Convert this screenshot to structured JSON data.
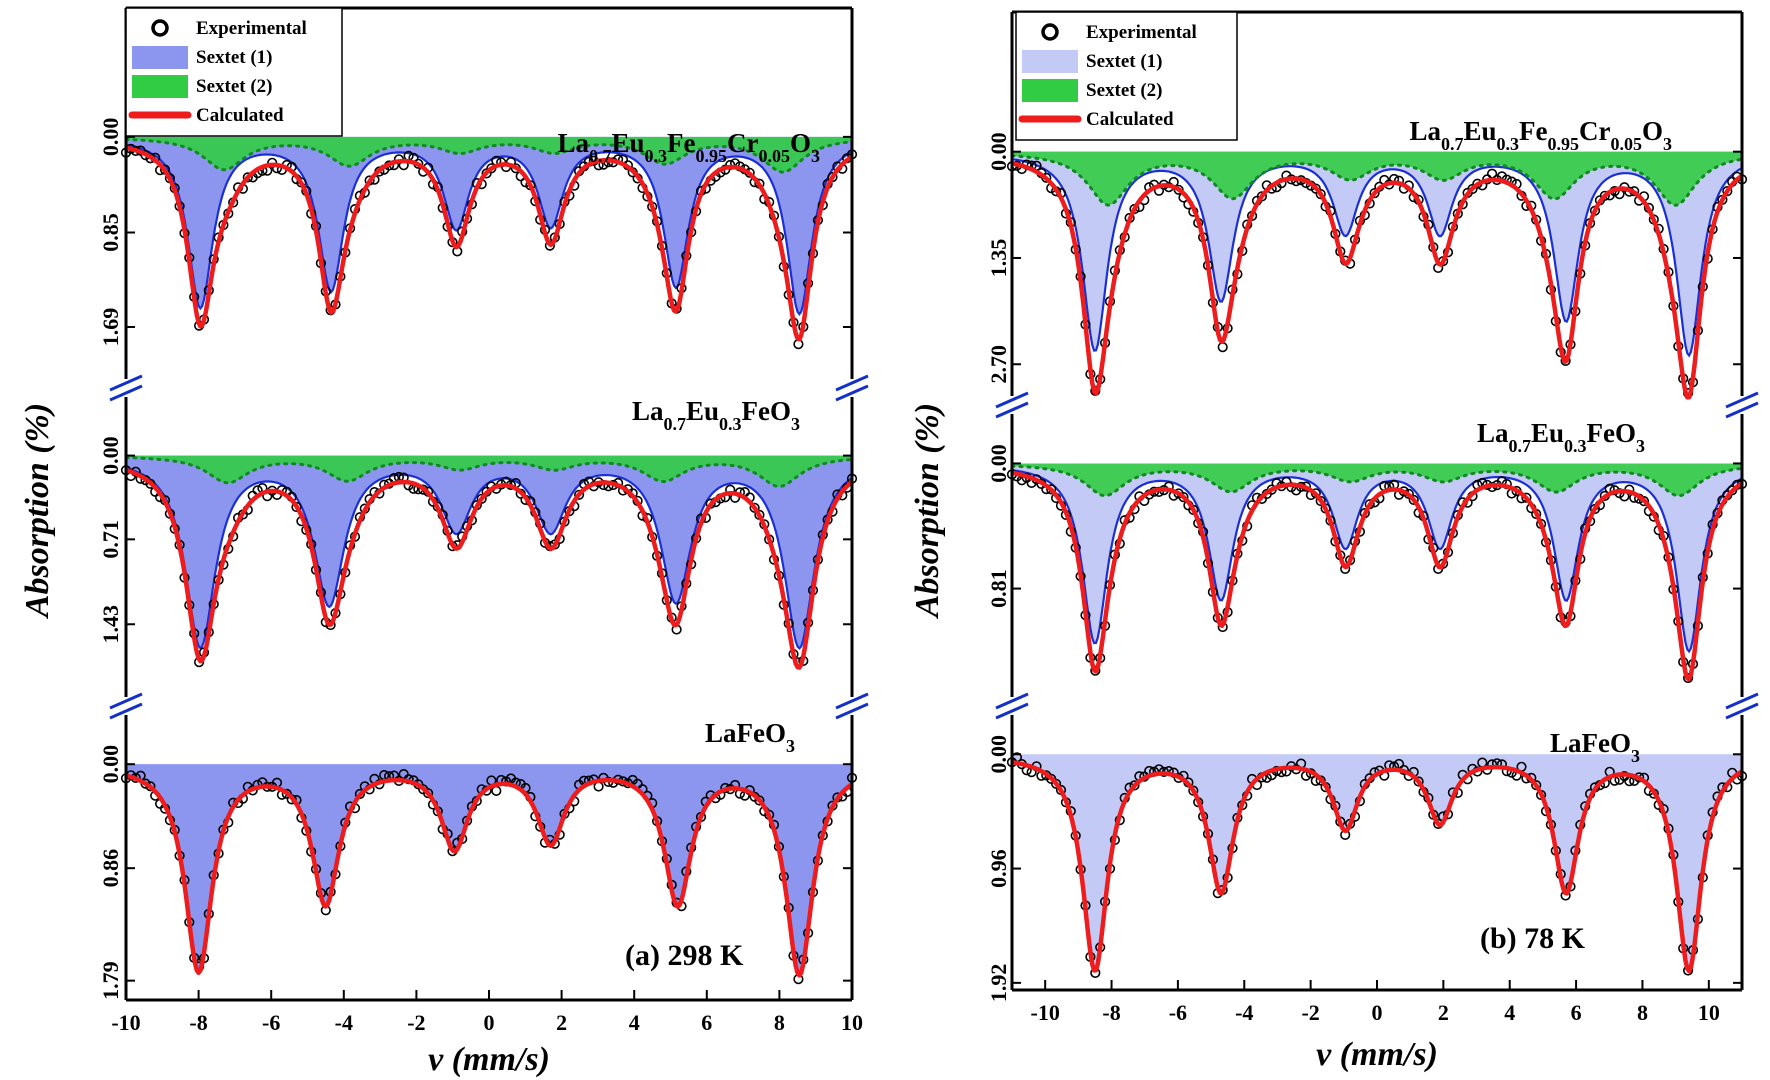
{
  "colors": {
    "experimental": "#000000",
    "sextet1_fill_a": "#8c96ef",
    "sextet1_fill_b": "#c4caf6",
    "sextet1_line": "#1b2fd6",
    "sextet2_fill": "#32cc44",
    "sextet2_line": "#118a22",
    "calculated": "#ee1c1c",
    "break_mark": "#1330c8"
  },
  "chart_data": [
    {
      "type": "line",
      "panel_label": "(a) 298 K",
      "xlabel": "v (mm/s)",
      "ylabel": "Absorption (%)",
      "xlim": [
        -10,
        10
      ],
      "xticks": [
        -10,
        -8,
        -6,
        -4,
        -2,
        0,
        2,
        4,
        6,
        8,
        10
      ],
      "legend": {
        "placement": "top-left",
        "entries": [
          "Experimental",
          "Sextet (1)",
          "Sextet (2)",
          "Calculated"
        ]
      },
      "subplots": [
        {
          "sample": {
            "parts": [
              [
                "La",
                ""
              ],
              [
                "0.7",
                "sub"
              ],
              [
                "Eu",
                ""
              ],
              [
                "0.3",
                "sub"
              ],
              [
                "Fe",
                ""
              ],
              [
                "0.95",
                "sub"
              ],
              [
                "Cr",
                ""
              ],
              [
                "0.05",
                "sub"
              ],
              [
                "O",
                ""
              ],
              [
                "3",
                "sub"
              ]
            ]
          },
          "yticks": [
            "0.00",
            "0.85",
            "1.69"
          ],
          "ytick_values": [
            0.0,
            0.85,
            1.69
          ],
          "ylim": [
            -0.15,
            1.85
          ],
          "sextet1": {
            "positions": [
              -7.95,
              -4.35,
              -0.9,
              1.7,
              5.15,
              8.55
            ],
            "depths": [
              1.5,
              1.34,
              0.78,
              0.76,
              1.3,
              1.55
            ],
            "width": 0.42
          },
          "sextet2": {
            "positions": [
              -7.3,
              -3.85,
              -0.8,
              1.8,
              4.85,
              8.1
            ],
            "depths": [
              0.28,
              0.24,
              0.12,
              0.12,
              0.22,
              0.3
            ],
            "width": 0.7
          }
        },
        {
          "sample": {
            "parts": [
              [
                "La",
                ""
              ],
              [
                "0.7",
                "sub"
              ],
              [
                "Eu",
                ""
              ],
              [
                "0.3",
                "sub"
              ],
              [
                "FeO",
                ""
              ],
              [
                "3",
                "sub"
              ]
            ]
          },
          "yticks": [
            "0.00",
            "0.71",
            "1.43"
          ],
          "ytick_values": [
            0.0,
            0.71,
            1.43
          ],
          "ylim": [
            -0.2,
            1.75
          ],
          "sextet1": {
            "positions": [
              -7.95,
              -4.4,
              -0.9,
              1.7,
              5.15,
              8.55
            ],
            "depths": [
              1.6,
              1.23,
              0.6,
              0.6,
              1.2,
              1.6
            ],
            "width": 0.5
          },
          "sextet2": {
            "positions": [
              -7.2,
              -3.9,
              -0.8,
              1.8,
              4.8,
              8.0
            ],
            "depths": [
              0.22,
              0.2,
              0.1,
              0.1,
              0.2,
              0.25
            ],
            "width": 0.7
          }
        },
        {
          "sample": {
            "parts": [
              [
                "LaFeO",
                ""
              ],
              [
                "3",
                "sub"
              ]
            ]
          },
          "yticks": [
            "0.00",
            "0.86",
            "1.79"
          ],
          "ytick_values": [
            0.0,
            0.86,
            1.79
          ],
          "ylim": [
            -0.2,
            1.95
          ],
          "sextet1": {
            "positions": [
              -8.0,
              -4.5,
              -0.95,
              1.7,
              5.2,
              8.55
            ],
            "depths": [
              1.7,
              1.13,
              0.67,
              0.62,
              1.13,
              1.72
            ],
            "width": 0.45
          }
        }
      ]
    },
    {
      "type": "line",
      "panel_label": "(b) 78 K",
      "xlabel": "v (mm/s)",
      "ylabel": "Absorption (%)",
      "xlim": [
        -11,
        11
      ],
      "xticks": [
        -10,
        -8,
        -6,
        -4,
        -2,
        0,
        2,
        4,
        6,
        8,
        10
      ],
      "legend": {
        "placement": "top-left",
        "entries": [
          "Experimental",
          "Sextet (1)",
          "Sextet (2)",
          "Calculated"
        ]
      },
      "subplots": [
        {
          "sample": {
            "parts": [
              [
                "La",
                ""
              ],
              [
                "0.7",
                "sub"
              ],
              [
                "Eu",
                ""
              ],
              [
                "0.3",
                "sub"
              ],
              [
                "Fe",
                ""
              ],
              [
                "0.95",
                "sub"
              ],
              [
                "Cr",
                ""
              ],
              [
                "0.05",
                "sub"
              ],
              [
                "O",
                ""
              ],
              [
                "3",
                "sub"
              ]
            ]
          },
          "yticks": [
            "0.00",
            "1.35",
            "2.70"
          ],
          "ytick_values": [
            0.0,
            1.35,
            2.7
          ],
          "ylim": [
            -0.25,
            2.9
          ],
          "sextet1": {
            "positions": [
              -8.5,
              -4.7,
              -0.95,
              1.9,
              5.7,
              9.4
            ],
            "depths": [
              2.5,
              1.85,
              1.0,
              1.0,
              2.1,
              2.55
            ],
            "width": 0.45
          },
          "sextet2": {
            "positions": [
              -8.1,
              -4.35,
              -0.8,
              2.0,
              5.35,
              9.0
            ],
            "depths": [
              0.65,
              0.55,
              0.3,
              0.3,
              0.55,
              0.65
            ],
            "width": 0.75
          }
        },
        {
          "sample": {
            "parts": [
              [
                "La",
                ""
              ],
              [
                "0.7",
                "sub"
              ],
              [
                "Eu",
                ""
              ],
              [
                "0.3",
                "sub"
              ],
              [
                "FeO",
                ""
              ],
              [
                "3",
                "sub"
              ]
            ]
          },
          "yticks": [
            "0.00",
            "0.81"
          ],
          "ytick_values": [
            0.0,
            0.81
          ],
          "ylim": [
            -0.1,
            1.35
          ],
          "sextet1": {
            "positions": [
              -8.5,
              -4.7,
              -0.95,
              1.9,
              5.7,
              9.4
            ],
            "depths": [
              1.15,
              0.86,
              0.52,
              0.52,
              0.86,
              1.2
            ],
            "width": 0.45
          },
          "sextet2": {
            "positions": [
              -8.2,
              -4.4,
              -0.8,
              2.0,
              5.4,
              9.1
            ],
            "depths": [
              0.2,
              0.17,
              0.1,
              0.1,
              0.17,
              0.2
            ],
            "width": 0.75
          }
        },
        {
          "sample": {
            "parts": [
              [
                "LaFeO",
                ""
              ],
              [
                "3",
                "sub"
              ]
            ]
          },
          "yticks": [
            "0.00",
            "0.96",
            "1.92"
          ],
          "ytick_values": [
            0.0,
            0.96,
            1.92
          ],
          "ylim": [
            -0.12,
            1.98
          ],
          "sextet1": {
            "positions": [
              -8.5,
              -4.7,
              -0.95,
              1.9,
              5.7,
              9.4
            ],
            "depths": [
              1.8,
              1.13,
              0.6,
              0.55,
              1.13,
              1.8
            ],
            "width": 0.45
          }
        }
      ]
    }
  ]
}
